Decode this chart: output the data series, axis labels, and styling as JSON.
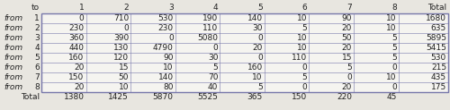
{
  "table_data": [
    [
      0,
      710,
      530,
      190,
      140,
      10,
      90,
      10,
      1680
    ],
    [
      230,
      0,
      230,
      110,
      30,
      5,
      20,
      10,
      635
    ],
    [
      360,
      390,
      0,
      5080,
      0,
      10,
      50,
      5,
      5895
    ],
    [
      440,
      130,
      4790,
      0,
      20,
      10,
      20,
      5,
      5415
    ],
    [
      160,
      120,
      90,
      30,
      0,
      110,
      15,
      5,
      530
    ],
    [
      20,
      15,
      10,
      5,
      160,
      0,
      5,
      0,
      215
    ],
    [
      150,
      50,
      140,
      70,
      10,
      5,
      0,
      10,
      435
    ],
    [
      20,
      10,
      80,
      40,
      5,
      0,
      20,
      0,
      175
    ]
  ],
  "totals_row": [
    1380,
    1425,
    5870,
    5525,
    365,
    150,
    220,
    45
  ],
  "col_headers": [
    "1",
    "2",
    "3",
    "4",
    "5",
    "6",
    "7",
    "8",
    "Total"
  ],
  "row_labels": [
    "1",
    "2",
    "3",
    "4",
    "5",
    "6",
    "7",
    "8"
  ],
  "bg_color": "#e8e6e0",
  "cell_bg": "#f5f4f0",
  "border_color": "#7777aa",
  "text_color": "#222222",
  "header_fontsize": 6.5,
  "cell_fontsize": 6.5,
  "fig_width": 5.0,
  "fig_height": 1.23,
  "dpi": 100
}
